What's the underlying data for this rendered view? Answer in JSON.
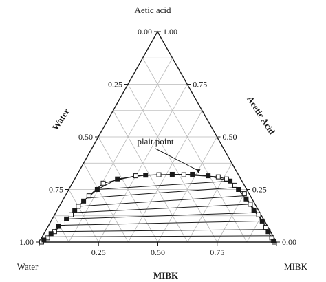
{
  "chart_data": {
    "type": "ternary",
    "vertex_labels": {
      "top": "Aetic acid",
      "left": "Water",
      "right": "MIBK"
    },
    "axis_labels": {
      "left": "Water",
      "right": "Acetic Acid",
      "bottom": "MIBK"
    },
    "ticks": [
      0,
      0.25,
      0.5,
      0.75,
      1
    ],
    "tick_labels": [
      "0.00",
      "0.25",
      "0.50",
      "0.75",
      "1.00"
    ],
    "grid": true,
    "grid_step": 0.125,
    "annotation": {
      "text": "plait point",
      "at": {
        "acetic": 0.323,
        "mibk": 0.51,
        "water": 0.167
      }
    },
    "series": [
      {
        "marker": "open-square",
        "points": [
          {
            "acetic": 0.0,
            "mibk": 0.01,
            "water": 0.99
          },
          {
            "acetic": 0.02,
            "mibk": 0.025,
            "water": 0.955
          },
          {
            "acetic": 0.05,
            "mibk": 0.04,
            "water": 0.91
          },
          {
            "acetic": 0.09,
            "mibk": 0.055,
            "water": 0.855
          },
          {
            "acetic": 0.13,
            "mibk": 0.07,
            "water": 0.8
          },
          {
            "acetic": 0.17,
            "mibk": 0.08,
            "water": 0.75
          },
          {
            "acetic": 0.22,
            "mibk": 0.1,
            "water": 0.68
          },
          {
            "acetic": 0.28,
            "mibk": 0.13,
            "water": 0.59
          },
          {
            "acetic": 0.315,
            "mibk": 0.25,
            "water": 0.435
          },
          {
            "acetic": 0.32,
            "mibk": 0.345,
            "water": 0.335
          },
          {
            "acetic": 0.32,
            "mibk": 0.45,
            "water": 0.23
          },
          {
            "acetic": 0.31,
            "mibk": 0.6,
            "water": 0.09
          },
          {
            "acetic": 0.3,
            "mibk": 0.64,
            "water": 0.06
          },
          {
            "acetic": 0.27,
            "mibk": 0.69,
            "water": 0.04
          },
          {
            "acetic": 0.23,
            "mibk": 0.75,
            "water": 0.02
          },
          {
            "acetic": 0.18,
            "mibk": 0.8,
            "water": 0.02
          },
          {
            "acetic": 0.13,
            "mibk": 0.86,
            "water": 0.01
          },
          {
            "acetic": 0.07,
            "mibk": 0.92,
            "water": 0.01
          },
          {
            "acetic": 0.02,
            "mibk": 0.97,
            "water": 0.01
          },
          {
            "acetic": 0.0,
            "mibk": 0.99,
            "water": 0.01
          }
        ]
      },
      {
        "marker": "filled-square",
        "points": [
          {
            "acetic": 0.01,
            "mibk": 0.015,
            "water": 0.975
          },
          {
            "acetic": 0.04,
            "mibk": 0.03,
            "water": 0.93
          },
          {
            "acetic": 0.075,
            "mibk": 0.045,
            "water": 0.88
          },
          {
            "acetic": 0.11,
            "mibk": 0.06,
            "water": 0.83
          },
          {
            "acetic": 0.15,
            "mibk": 0.075,
            "water": 0.775
          },
          {
            "acetic": 0.195,
            "mibk": 0.09,
            "water": 0.715
          },
          {
            "acetic": 0.25,
            "mibk": 0.12,
            "water": 0.63
          },
          {
            "acetic": 0.3,
            "mibk": 0.18,
            "water": 0.52
          },
          {
            "acetic": 0.318,
            "mibk": 0.29,
            "water": 0.392
          },
          {
            "acetic": 0.322,
            "mibk": 0.4,
            "water": 0.278
          },
          {
            "acetic": 0.322,
            "mibk": 0.485,
            "water": 0.193
          },
          {
            "acetic": 0.315,
            "mibk": 0.555,
            "water": 0.13
          },
          {
            "acetic": 0.29,
            "mibk": 0.66,
            "water": 0.05
          },
          {
            "acetic": 0.25,
            "mibk": 0.715,
            "water": 0.035
          },
          {
            "acetic": 0.205,
            "mibk": 0.77,
            "water": 0.025
          },
          {
            "acetic": 0.15,
            "mibk": 0.83,
            "water": 0.02
          },
          {
            "acetic": 0.1,
            "mibk": 0.89,
            "water": 0.01
          },
          {
            "acetic": 0.05,
            "mibk": 0.94,
            "water": 0.01
          },
          {
            "acetic": 0.005,
            "mibk": 0.985,
            "water": 0.01
          }
        ]
      }
    ],
    "tie_lines": [
      {
        "from": {
          "acetic": 0.005,
          "mibk": 0.005,
          "water": 0.99
        },
        "to": {
          "acetic": 0.005,
          "mibk": 0.985,
          "water": 0.01
        }
      },
      {
        "from": {
          "acetic": 0.025,
          "mibk": 0.025,
          "water": 0.95
        },
        "to": {
          "acetic": 0.03,
          "mibk": 0.96,
          "water": 0.01
        }
      },
      {
        "from": {
          "acetic": 0.05,
          "mibk": 0.04,
          "water": 0.91
        },
        "to": {
          "acetic": 0.06,
          "mibk": 0.93,
          "water": 0.01
        }
      },
      {
        "from": {
          "acetic": 0.08,
          "mibk": 0.05,
          "water": 0.87
        },
        "to": {
          "acetic": 0.1,
          "mibk": 0.89,
          "water": 0.01
        }
      },
      {
        "from": {
          "acetic": 0.11,
          "mibk": 0.06,
          "water": 0.83
        },
        "to": {
          "acetic": 0.14,
          "mibk": 0.845,
          "water": 0.015
        }
      },
      {
        "from": {
          "acetic": 0.14,
          "mibk": 0.07,
          "water": 0.79
        },
        "to": {
          "acetic": 0.18,
          "mibk": 0.8,
          "water": 0.02
        }
      },
      {
        "from": {
          "acetic": 0.17,
          "mibk": 0.08,
          "water": 0.75
        },
        "to": {
          "acetic": 0.22,
          "mibk": 0.755,
          "water": 0.025
        }
      },
      {
        "from": {
          "acetic": 0.21,
          "mibk": 0.1,
          "water": 0.69
        },
        "to": {
          "acetic": 0.26,
          "mibk": 0.705,
          "water": 0.035
        }
      },
      {
        "from": {
          "acetic": 0.25,
          "mibk": 0.12,
          "water": 0.63
        },
        "to": {
          "acetic": 0.29,
          "mibk": 0.66,
          "water": 0.05
        }
      }
    ]
  }
}
